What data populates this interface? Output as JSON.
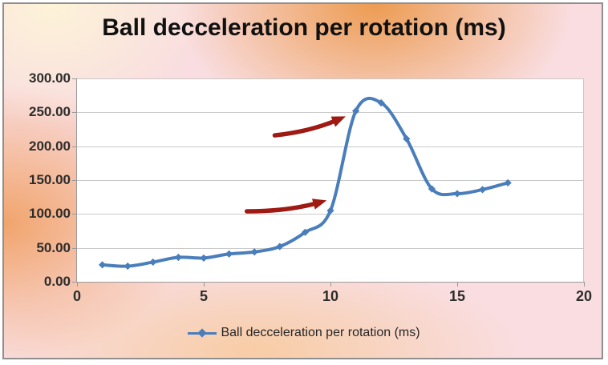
{
  "title": "Ball decceleration per rotation (ms)",
  "legend": {
    "label": "Ball decceleration per rotation (ms)"
  },
  "colors": {
    "series_line": "#4a7ebb",
    "annotation_arrow": "#9e1a13",
    "gridline": "#c9c9c9",
    "axis_line": "#9a9a9a",
    "label_text": "#2c2c2c",
    "title_text": "#111111",
    "plot_background": "#ffffff",
    "frame_border": "#8f8f8f"
  },
  "chart_data": {
    "type": "line",
    "title": "Ball decceleration per rotation (ms)",
    "xlabel": "",
    "ylabel": "",
    "xlim": [
      0,
      20
    ],
    "ylim": [
      0,
      300
    ],
    "grid": "horizontal",
    "legend_position": "bottom",
    "smooth": true,
    "marker": "diamond",
    "x": [
      1,
      2,
      3,
      4,
      5,
      6,
      7,
      8,
      9,
      10,
      11,
      12,
      13,
      14,
      15,
      16,
      17
    ],
    "series": [
      {
        "name": "Ball decceleration per rotation (ms)",
        "values": [
          25,
          23,
          29,
          36,
          35,
          41,
          44,
          52,
          73,
          105,
          252,
          264,
          211,
          137,
          130,
          136,
          146
        ]
      }
    ],
    "xticks": {
      "values": [
        0,
        5,
        10,
        15,
        20
      ],
      "labels": [
        "0",
        "5",
        "10",
        "15",
        "20"
      ]
    },
    "yticks": {
      "values": [
        0,
        50,
        100,
        150,
        200,
        250,
        300
      ],
      "labels": [
        "0.00",
        "50.00",
        "100.00",
        "150.00",
        "200.00",
        "250.00",
        "300.00"
      ]
    },
    "annotations": [
      {
        "type": "arrow",
        "tail": [
          6.7,
          104
        ],
        "tip": [
          9.85,
          120
        ],
        "color": "#9e1a13"
      },
      {
        "type": "arrow",
        "tail": [
          7.8,
          216
        ],
        "tip": [
          10.6,
          244
        ],
        "color": "#9e1a13"
      }
    ]
  }
}
